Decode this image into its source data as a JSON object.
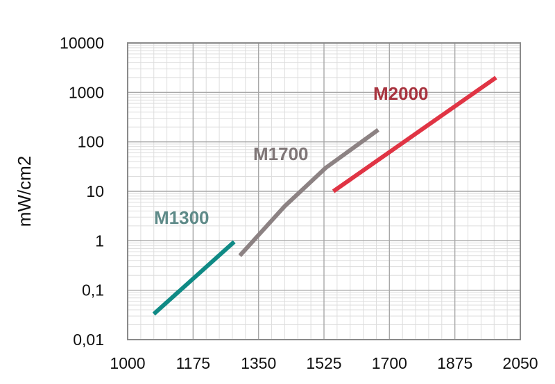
{
  "chart_data": {
    "type": "line",
    "title": "",
    "xlabel": "",
    "ylabel": "mW/cm2",
    "xlim": [
      1000,
      2050
    ],
    "ylim": [
      0.01,
      10000
    ],
    "y_scale": "log",
    "grid": true,
    "legend": "inline labels",
    "x_ticks": [
      1000,
      1175,
      1350,
      1525,
      1700,
      1875,
      2050
    ],
    "x_tick_labels": [
      "1000",
      "1175",
      "1350",
      "1525",
      "1700",
      "1875",
      "2050"
    ],
    "y_ticks": [
      0.01,
      0.1,
      1,
      10,
      100,
      1000,
      10000
    ],
    "y_tick_labels": [
      "0,01",
      "0,1",
      "1",
      "10",
      "100",
      "1000",
      "10000"
    ],
    "series": [
      {
        "name": "M1300",
        "color": "#0f8a85",
        "x": [
          1070,
          1285
        ],
        "y": [
          0.033,
          0.95
        ]
      },
      {
        "name": "M1700",
        "color": "#8c8283",
        "x": [
          1300,
          1420,
          1530,
          1670
        ],
        "y": [
          0.5,
          5,
          30,
          175
        ]
      },
      {
        "name": "M2000",
        "color": "#e03444",
        "x": [
          1550,
          1985
        ],
        "y": [
          10,
          2000
        ]
      }
    ]
  }
}
